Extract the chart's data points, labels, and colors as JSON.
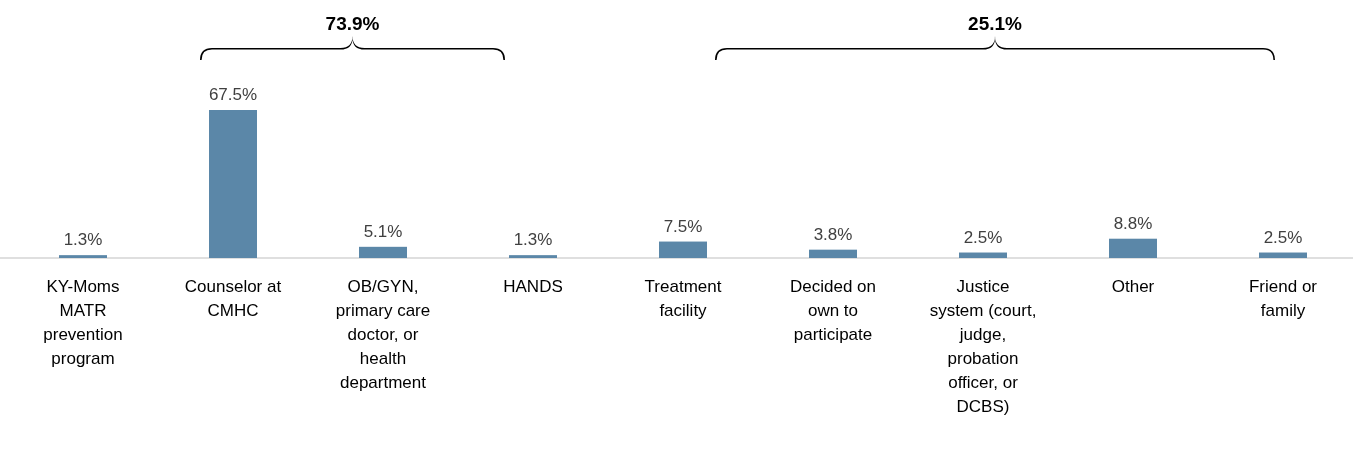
{
  "chart_data": {
    "type": "bar",
    "categories": [
      "KY-Moms MATR prevention program",
      "Counselor at CMHC",
      "OB/GYN, primary care doctor, or health department",
      "HANDS",
      "Treatment facility",
      "Decided on own to participate",
      "Justice system (court, judge, probation officer, or DCBS)",
      "Other",
      "Friend or family"
    ],
    "values": [
      1.3,
      67.5,
      5.1,
      1.3,
      7.5,
      3.8,
      2.5,
      8.8,
      2.5
    ],
    "color": "#5b87a8",
    "data_labels": true,
    "value_labels": [
      "1.3%",
      "67.5%",
      "5.1%",
      "1.3%",
      "7.5%",
      "3.8%",
      "2.5%",
      "8.8%",
      "2.5%"
    ],
    "annotations": [
      "73.9%",
      "25.1%"
    ]
  }
}
